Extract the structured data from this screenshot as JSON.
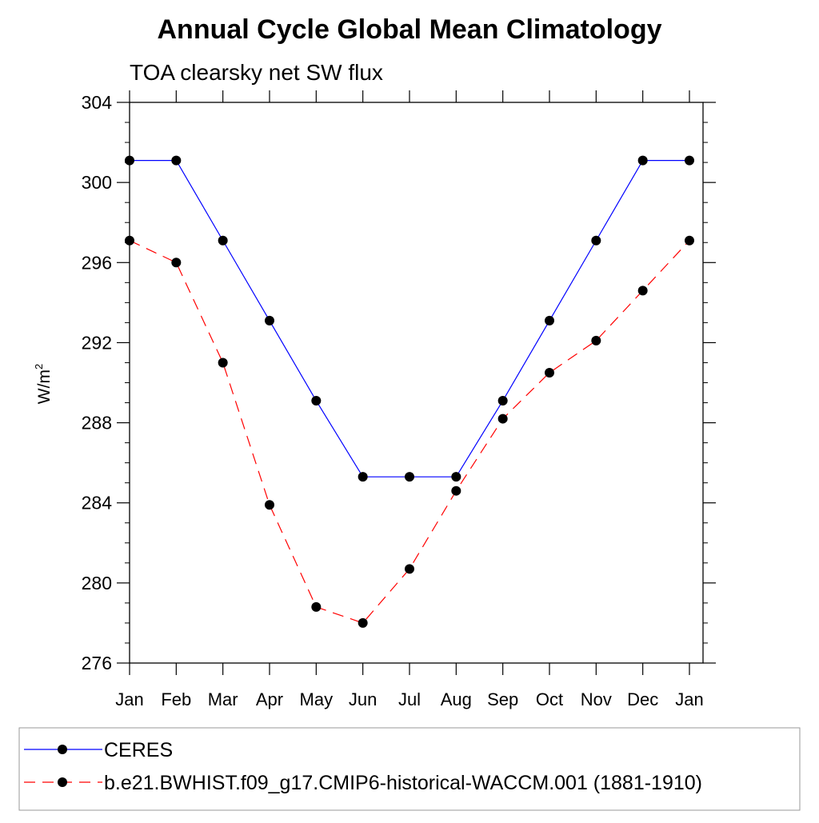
{
  "chart_data": {
    "type": "line",
    "title": "Annual Cycle Global Mean Climatology",
    "subtitle": "TOA clearsky net SW flux",
    "ylabel": "W/m",
    "ylabel_superscript": "2",
    "xlabel": "",
    "ylim": [
      276,
      304
    ],
    "yticks": [
      276,
      280,
      284,
      288,
      292,
      296,
      300,
      304
    ],
    "y_minor_step": 1,
    "grid": false,
    "legend_position": "bottom",
    "categories": [
      "Jan",
      "Feb",
      "Mar",
      "Apr",
      "May",
      "Jun",
      "Jul",
      "Aug",
      "Sep",
      "Oct",
      "Nov",
      "Dec",
      "Jan"
    ],
    "series": [
      {
        "name": "CERES",
        "color": "#0000ff",
        "line_style": "solid",
        "marker": "filled-circle",
        "values": [
          301.1,
          301.1,
          297.1,
          293.1,
          289.1,
          285.3,
          285.3,
          285.3,
          289.1,
          293.1,
          297.1,
          301.1,
          301.1
        ]
      },
      {
        "name": "b.e21.BWHIST.f09_g17.CMIP6-historical-WACCM.001 (1881-1910)",
        "color": "#ff0000",
        "line_style": "dashed",
        "marker": "filled-circle",
        "values": [
          297.1,
          296.0,
          291.0,
          283.9,
          278.8,
          278.0,
          280.7,
          284.6,
          288.2,
          290.5,
          292.1,
          294.6,
          297.1
        ]
      }
    ]
  }
}
